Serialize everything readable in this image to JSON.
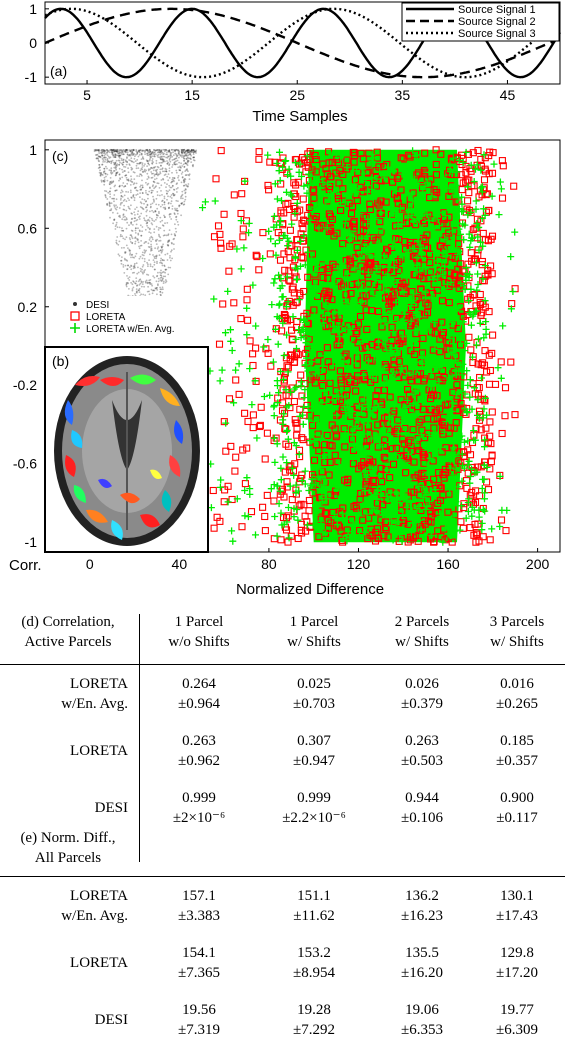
{
  "chart_data": [
    {
      "panel": "(a)",
      "type": "line",
      "xlabel": "Time Samples",
      "ylabel": "",
      "xlim": [
        1,
        50
      ],
      "ylim": [
        -1.2,
        1.2
      ],
      "x_ticks": [
        "5",
        "15",
        "25",
        "35",
        "45"
      ],
      "y_ticks": [
        "1",
        "0",
        "-1"
      ],
      "legend_position": "top-right",
      "series": [
        {
          "name": "Source Signal 1",
          "style": "solid",
          "period": 12.5,
          "peak_at": 2.5
        },
        {
          "name": "Source Signal 2",
          "style": "dashed",
          "period": 48,
          "peak_at": 13
        },
        {
          "name": "Source Signal 3",
          "style": "dotted",
          "period": 25,
          "peak_at": 3.5
        }
      ]
    },
    {
      "panel": "(c)",
      "type": "scatter",
      "xlabel": "Normalized Difference",
      "ylabel": "Corr.",
      "xlim": [
        -20,
        210
      ],
      "ylim": [
        -1.05,
        1.05
      ],
      "x_ticks": [
        "0",
        "40",
        "80",
        "120",
        "160",
        "200"
      ],
      "y_ticks": [
        "1",
        "0.6",
        "0.2",
        "-0.2",
        "-0.6",
        "-1"
      ],
      "legend_position": "middle-left",
      "series": [
        {
          "name": "DESI",
          "marker": "dot",
          "color": "#333333",
          "x_range": [
            2,
            48
          ],
          "y_range": [
            0.2,
            1.0
          ]
        },
        {
          "name": "LORETA",
          "marker": "square",
          "color": "#ff0000",
          "x_range": [
            55,
            190
          ],
          "y_range": [
            -1.0,
            1.0
          ]
        },
        {
          "name": "LORETA w/En. Avg.",
          "marker": "plus",
          "color": "#00ee00",
          "x_range": [
            50,
            190
          ],
          "y_range": [
            -1.0,
            1.0
          ]
        }
      ],
      "inset": {
        "label": "(b)",
        "description_type": "brain-parcellation-image"
      }
    }
  ],
  "table": {
    "columns": [
      "1 Parcel\nw/o Shifts",
      "1 Parcel\nw/ Shifts",
      "2 Parcels\nw/ Shifts",
      "3 Parcels\nw/ Shifts"
    ],
    "section_d": {
      "title": "(d) Correlation,\nActive Parcels",
      "rows": [
        {
          "label": "LORETA\nw/En. Avg.",
          "values": [
            [
              "0.264",
              "±0.964"
            ],
            [
              "0.025",
              "±0.703"
            ],
            [
              "0.026",
              "±0.379"
            ],
            [
              "0.016",
              "±0.265"
            ]
          ]
        },
        {
          "label": "LORETA",
          "values": [
            [
              "0.263",
              "±0.962"
            ],
            [
              "0.307",
              "±0.947"
            ],
            [
              "0.263",
              "±0.503"
            ],
            [
              "0.185",
              "±0.357"
            ]
          ]
        },
        {
          "label": "DESI",
          "values": [
            [
              "0.999",
              "±2×10⁻⁶"
            ],
            [
              "0.999",
              "±2.2×10⁻⁶"
            ],
            [
              "0.944",
              "±0.106"
            ],
            [
              "0.900",
              "±0.117"
            ]
          ]
        }
      ]
    },
    "section_e": {
      "title": "(e) Norm. Diff.,\nAll Parcels",
      "rows": [
        {
          "label": "LORETA\nw/En. Avg.",
          "values": [
            [
              "157.1",
              "±3.383"
            ],
            [
              "151.1",
              "±11.62"
            ],
            [
              "136.2",
              "±16.23"
            ],
            [
              "130.1",
              "±17.43"
            ]
          ]
        },
        {
          "label": "LORETA",
          "values": [
            [
              "154.1",
              "±7.365"
            ],
            [
              "153.2",
              "±8.954"
            ],
            [
              "135.5",
              "±16.20"
            ],
            [
              "129.8",
              "±17.20"
            ]
          ]
        },
        {
          "label": "DESI",
          "values": [
            [
              "19.56",
              "±7.319"
            ],
            [
              "19.28",
              "±7.292"
            ],
            [
              "19.06",
              "±6.353"
            ],
            [
              "19.77",
              "±6.309"
            ]
          ]
        }
      ]
    }
  }
}
